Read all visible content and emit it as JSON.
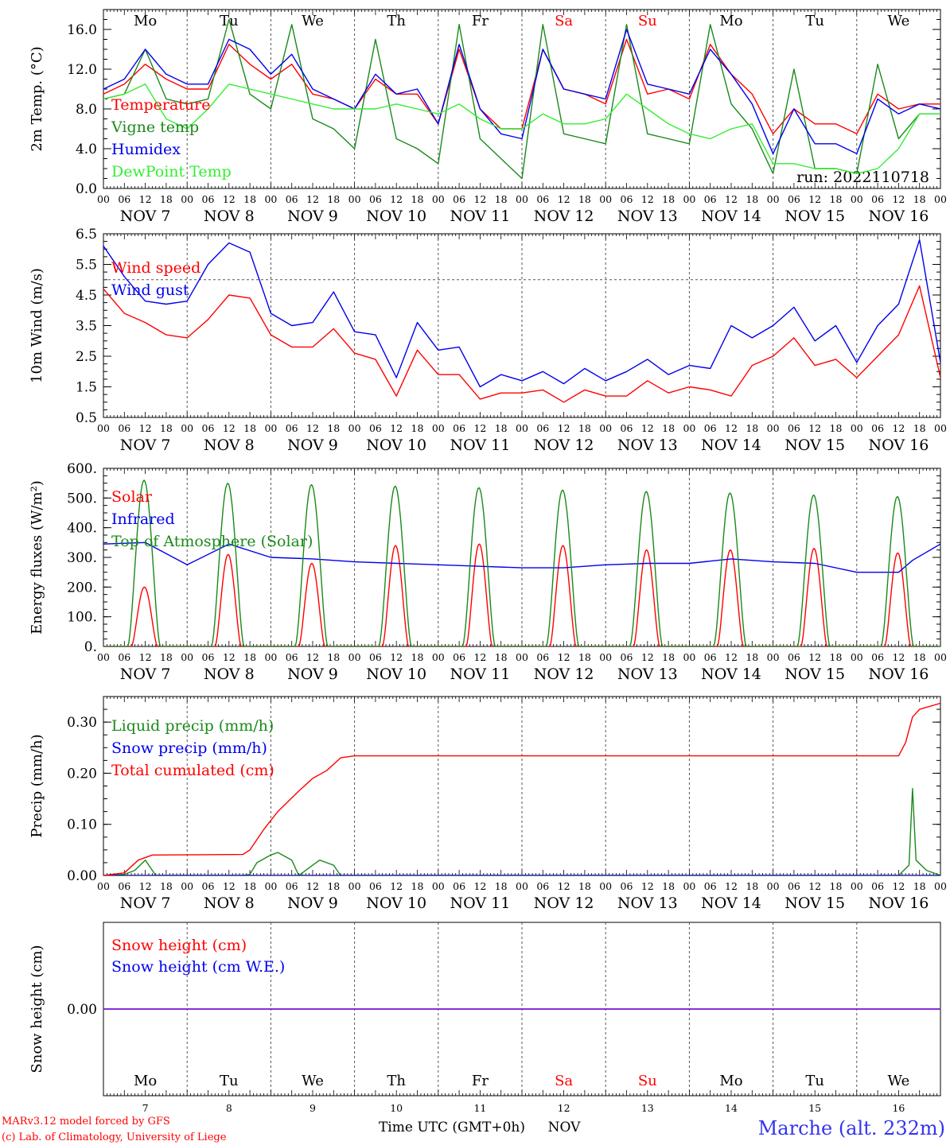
{
  "footer": {
    "credit_line1": "MARv3.12 model forced by GFS",
    "credit_line2": "(c) Lab. of Climatology, University of Liege",
    "x_title": "Time UTC (GMT+0h)",
    "x_unit": "NOV",
    "station": "Marche (alt. 232m)"
  },
  "colors": {
    "red": "#ff0000",
    "green": "#1a8a1a",
    "blue": "#0000ee",
    "lightgreen": "#33ee33",
    "darkgreen": "#008000",
    "purple": "#8a2be2",
    "axis": "#000000",
    "grid": "#555555"
  },
  "time_axis": {
    "start": "2022-11-07 00:00 UTC",
    "end": "2022-11-17 00:00 UTC",
    "hour_ticks": [
      "00",
      "06",
      "12",
      "18"
    ],
    "day_labels": [
      "NOV  7",
      "NOV  8",
      "NOV  9",
      "NOV 10",
      "NOV 11",
      "NOV 12",
      "NOV 13",
      "NOV 14",
      "NOV 15",
      "NOV 16"
    ],
    "weekdays": [
      "Mo",
      "Tu",
      "We",
      "Th",
      "Fr",
      "Sa",
      "Su",
      "Mo",
      "Tu",
      "We"
    ],
    "weekend_days": [
      "Sa",
      "Su"
    ],
    "day_numbers": [
      "7",
      "8",
      "9",
      "10",
      "11",
      "12",
      "13",
      "14",
      "15",
      "16"
    ]
  },
  "chart_data": [
    {
      "type": "line",
      "ylabel": "2m Temp. (°C)",
      "ylim": [
        0,
        18
      ],
      "yticks": [
        0,
        4,
        8,
        12,
        16
      ],
      "ytick_labels": [
        "0.0",
        "4.0",
        "8.0",
        "12.0",
        "16.0"
      ],
      "annotation": "run: 2022110718",
      "x_hours": [
        0,
        6,
        12,
        18,
        24,
        30,
        36,
        42,
        48,
        54,
        60,
        66,
        72,
        78,
        84,
        90,
        96,
        102,
        108,
        114,
        120,
        126,
        132,
        138,
        144,
        150,
        156,
        162,
        168,
        174,
        180,
        186,
        192,
        198,
        204,
        210,
        216,
        222,
        228,
        234,
        240
      ],
      "series": [
        {
          "name": "Temperature",
          "color": "red",
          "values": [
            9.5,
            10.5,
            12.5,
            11.0,
            10.0,
            10.0,
            14.5,
            12.5,
            11.0,
            12.5,
            9.5,
            9.0,
            8.0,
            11.0,
            9.5,
            9.5,
            6.5,
            14.0,
            8.0,
            6.0,
            6.0,
            14.0,
            10.0,
            9.5,
            8.5,
            15.0,
            9.5,
            10.0,
            9.0,
            14.5,
            11.5,
            9.5,
            5.5,
            8.0,
            6.5,
            6.5,
            5.5,
            9.5,
            8.0,
            8.5,
            8.5
          ]
        },
        {
          "name": "Vigne temp",
          "color": "green",
          "values": [
            9.0,
            9.5,
            14.0,
            9.0,
            8.5,
            9.0,
            17.0,
            9.5,
            8.0,
            16.5,
            7.0,
            6.0,
            4.0,
            15.0,
            5.0,
            4.0,
            2.5,
            16.5,
            5.0,
            3.0,
            1.0,
            16.5,
            5.5,
            5.0,
            4.5,
            16.5,
            5.5,
            5.0,
            4.5,
            16.5,
            8.5,
            6.0,
            1.5,
            12.0,
            2.0,
            2.0,
            1.5,
            12.5,
            5.0,
            7.5,
            7.5
          ]
        },
        {
          "name": "Humidex",
          "color": "blue",
          "values": [
            10.0,
            11.0,
            14.0,
            11.5,
            10.5,
            10.5,
            15.0,
            14.0,
            11.5,
            13.5,
            10.0,
            9.0,
            8.0,
            11.5,
            9.5,
            10.0,
            6.5,
            14.5,
            8.0,
            5.5,
            5.0,
            14.0,
            10.0,
            9.5,
            9.0,
            16.0,
            10.5,
            10.0,
            9.5,
            14.0,
            11.5,
            8.5,
            3.5,
            8.0,
            4.5,
            4.5,
            3.5,
            9.0,
            7.5,
            8.5,
            8.0
          ]
        },
        {
          "name": "DewPoint Temp",
          "color": "lightgreen",
          "values": [
            9.0,
            9.5,
            10.5,
            7.0,
            6.0,
            8.0,
            10.5,
            10.0,
            9.5,
            9.0,
            8.5,
            8.0,
            8.0,
            8.0,
            8.5,
            8.0,
            7.5,
            8.5,
            7.0,
            6.0,
            6.0,
            7.5,
            6.5,
            6.5,
            7.0,
            9.5,
            8.0,
            6.5,
            5.5,
            5.0,
            6.0,
            6.5,
            2.5,
            2.5,
            2.0,
            2.0,
            1.5,
            2.0,
            4.0,
            7.5,
            7.5
          ]
        }
      ]
    },
    {
      "type": "line",
      "ylabel": "10m Wind (m/s)",
      "ylim": [
        0.5,
        6.5
      ],
      "yticks": [
        0.5,
        1.5,
        2.5,
        3.5,
        4.5,
        5.5,
        6.5
      ],
      "ytick_labels": [
        "0.5",
        "1.5",
        "2.5",
        "3.5",
        "4.5",
        "5.5",
        "6.5"
      ],
      "reference_line": 5.0,
      "x_hours": [
        0,
        6,
        12,
        18,
        24,
        30,
        36,
        42,
        48,
        54,
        60,
        66,
        72,
        78,
        84,
        90,
        96,
        102,
        108,
        114,
        120,
        126,
        132,
        138,
        144,
        150,
        156,
        162,
        168,
        174,
        180,
        186,
        192,
        198,
        204,
        210,
        216,
        222,
        228,
        234,
        240
      ],
      "series": [
        {
          "name": "Wind speed",
          "color": "red",
          "values": [
            4.7,
            3.9,
            3.6,
            3.2,
            3.1,
            3.7,
            4.5,
            4.4,
            3.2,
            2.8,
            2.8,
            3.4,
            2.6,
            2.4,
            1.2,
            2.7,
            1.9,
            1.9,
            1.1,
            1.3,
            1.3,
            1.4,
            1.0,
            1.4,
            1.2,
            1.2,
            1.7,
            1.3,
            1.5,
            1.4,
            1.2,
            2.2,
            2.5,
            3.1,
            2.2,
            2.4,
            1.8,
            2.5,
            3.2,
            4.8,
            1.8
          ]
        },
        {
          "name": "Wind gust",
          "color": "blue",
          "values": [
            6.1,
            5.1,
            4.3,
            4.2,
            4.3,
            5.5,
            6.2,
            5.9,
            3.9,
            3.5,
            3.6,
            4.6,
            3.3,
            3.2,
            1.8,
            3.6,
            2.7,
            2.8,
            1.5,
            1.9,
            1.7,
            2.0,
            1.6,
            2.1,
            1.7,
            2.0,
            2.4,
            1.9,
            2.2,
            2.1,
            3.5,
            3.1,
            3.5,
            4.1,
            3.0,
            3.5,
            2.3,
            3.5,
            4.2,
            6.3,
            2.3
          ]
        }
      ]
    },
    {
      "type": "line",
      "ylabel": "Energy fluxes (W/m²)",
      "ylim": [
        0,
        600
      ],
      "yticks": [
        0,
        100,
        200,
        300,
        400,
        500,
        600
      ],
      "ytick_labels": [
        "0.",
        "100.",
        "200.",
        "300.",
        "400.",
        "500.",
        "600."
      ],
      "daily_peaks": {
        "Solar": [
          200,
          310,
          280,
          340,
          345,
          340,
          325,
          325,
          330,
          315
        ],
        "Top of Atmosphere (Solar)": [
          560,
          550,
          545,
          540,
          535,
          527,
          522,
          517,
          510,
          505
        ]
      },
      "x_hours": [
        0,
        12,
        24,
        36,
        48,
        60,
        72,
        84,
        96,
        108,
        120,
        132,
        144,
        156,
        168,
        180,
        192,
        204,
        216,
        228,
        232,
        240
      ],
      "series": [
        {
          "name": "Solar",
          "color": "red"
        },
        {
          "name": "Infrared",
          "color": "blue",
          "values": [
            345,
            350,
            275,
            345,
            300,
            295,
            285,
            280,
            275,
            270,
            265,
            265,
            275,
            280,
            280,
            295,
            285,
            280,
            250,
            250,
            290,
            345
          ]
        },
        {
          "name": "Top of Atmosphere (Solar)",
          "color": "green"
        }
      ]
    },
    {
      "type": "line",
      "ylabel": "Precip (mm/h)",
      "ylim": [
        0,
        0.35
      ],
      "yticks": [
        0,
        0.1,
        0.2,
        0.3
      ],
      "ytick_labels": [
        "0.00",
        "0.10",
        "0.20",
        "0.30"
      ],
      "series": [
        {
          "name": "Liquid precip (mm/h)",
          "color": "green",
          "x_hours": [
            0,
            6,
            9,
            12,
            15,
            40,
            42,
            44,
            48,
            50,
            54,
            56,
            60,
            62,
            66,
            68,
            72,
            74,
            228,
            231,
            232,
            233,
            236,
            240
          ],
          "values": [
            0,
            0.002,
            0.01,
            0.03,
            0,
            0,
            0.002,
            0.025,
            0.04,
            0.045,
            0.03,
            0,
            0.02,
            0.03,
            0.02,
            0,
            0,
            0,
            0,
            0.02,
            0.17,
            0.03,
            0.01,
            0
          ]
        },
        {
          "name": "Snow precip (mm/h)",
          "color": "blue",
          "x_hours": [
            0,
            240
          ],
          "values": [
            0,
            0
          ]
        },
        {
          "name": "Total cumulated (cm)",
          "color": "red",
          "x_hours": [
            0,
            6,
            10,
            14,
            40,
            42,
            46,
            50,
            56,
            60,
            64,
            68,
            72,
            228,
            230,
            232,
            234,
            240
          ],
          "values": [
            0,
            0.005,
            0.03,
            0.04,
            0.041,
            0.05,
            0.09,
            0.125,
            0.165,
            0.19,
            0.205,
            0.23,
            0.234,
            0.234,
            0.26,
            0.31,
            0.325,
            0.337
          ]
        }
      ]
    },
    {
      "type": "line",
      "ylabel": "Snow height (cm)",
      "yticks": [
        0
      ],
      "ytick_labels": [
        "0.00"
      ],
      "series": [
        {
          "name": "Snow height (cm)",
          "color": "red",
          "x_hours": [
            0,
            240
          ],
          "values": [
            0,
            0
          ]
        },
        {
          "name": "Snow height (cm W.E.)",
          "color": "blue",
          "x_hours": [
            0,
            240
          ],
          "values": [
            0,
            0
          ]
        }
      ]
    }
  ]
}
